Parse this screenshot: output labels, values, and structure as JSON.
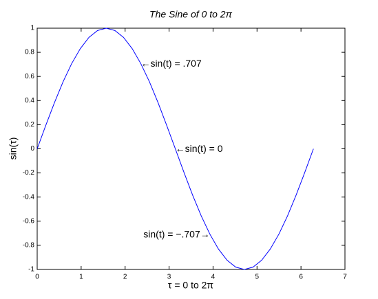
{
  "chart_data": {
    "type": "line",
    "title": "The Sine of 0 to 2π",
    "x_label": "τ = 0 to 2π",
    "y_label": "sin(τ)",
    "x": [
      0,
      0.196,
      0.393,
      0.589,
      0.785,
      0.982,
      1.178,
      1.374,
      1.571,
      1.767,
      1.963,
      2.16,
      2.356,
      2.553,
      2.749,
      2.945,
      3.142,
      3.338,
      3.534,
      3.731,
      3.927,
      4.123,
      4.32,
      4.516,
      4.712,
      4.909,
      5.105,
      5.301,
      5.498,
      5.694,
      5.89,
      6.087,
      6.283
    ],
    "series": [
      {
        "color": "#0000ff",
        "values": [
          0,
          0.195,
          0.383,
          0.556,
          0.707,
          0.831,
          0.924,
          0.981,
          1,
          0.981,
          0.924,
          0.831,
          0.707,
          0.556,
          0.383,
          0.195,
          0,
          -0.195,
          -0.383,
          -0.556,
          -0.707,
          -0.831,
          -0.924,
          -0.981,
          -1,
          -0.981,
          -0.924,
          -0.831,
          -0.707,
          -0.556,
          -0.383,
          -0.195,
          0
        ]
      }
    ],
    "annotations": [
      "←sin(t) = .707",
      "←sin(t) = 0",
      "sin(t) = −.707→"
    ],
    "xlim": [
      0,
      7
    ],
    "xticks": [
      0,
      1,
      2,
      3,
      4,
      5,
      6,
      7
    ],
    "ylim": [
      -1,
      1
    ],
    "yticks": [
      -1,
      -0.8,
      -0.6,
      -0.4,
      -0.2,
      0,
      0.2,
      0.4,
      0.6,
      0.8,
      1
    ],
    "grid": false
  }
}
